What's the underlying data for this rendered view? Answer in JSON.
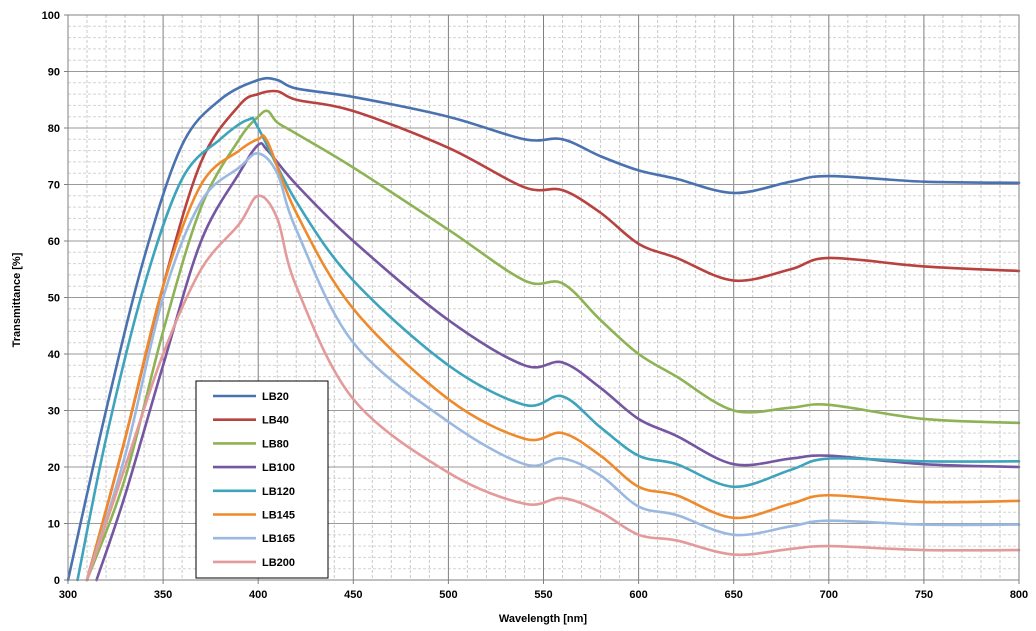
{
  "chart_data": {
    "type": "line",
    "title": "",
    "xlabel": "Wavelength [nm]",
    "ylabel": "Transmittance [%]",
    "xlim": [
      300,
      800
    ],
    "ylim": [
      0,
      100
    ],
    "x_ticks": [
      300,
      350,
      400,
      450,
      500,
      550,
      600,
      650,
      700,
      750,
      800
    ],
    "y_ticks": [
      0,
      10,
      20,
      30,
      40,
      50,
      60,
      70,
      80,
      90,
      100
    ],
    "x_tick_labels": [
      "300",
      "350",
      "400",
      "450",
      "500",
      "550",
      "600",
      "650",
      "700",
      "750",
      "800"
    ],
    "y_tick_labels": [
      "0",
      "10",
      "20",
      "30",
      "40",
      "50",
      "60",
      "70",
      "80",
      "90",
      "100"
    ],
    "grid": true,
    "legend_position": "bottom-left",
    "series": [
      {
        "name": "LB20",
        "color": "#4a72b0",
        "x": [
          300,
          320,
          340,
          360,
          380,
          400,
          410,
          420,
          450,
          500,
          540,
          560,
          580,
          600,
          620,
          650,
          680,
          700,
          750,
          800
        ],
        "y": [
          0,
          30,
          57,
          77,
          85,
          88.5,
          88.5,
          87,
          85.5,
          82,
          78,
          78,
          75,
          72.5,
          71,
          68.5,
          70.5,
          71.5,
          70.5,
          70.3
        ]
      },
      {
        "name": "LB40",
        "color": "#b74240",
        "x": [
          310,
          330,
          350,
          370,
          390,
          400,
          410,
          420,
          450,
          500,
          540,
          560,
          580,
          600,
          620,
          650,
          680,
          700,
          750,
          800
        ],
        "y": [
          0,
          25,
          52,
          74,
          84,
          86,
          86.5,
          85,
          83,
          76.5,
          69.5,
          69,
          65,
          59.5,
          57,
          53,
          55,
          57,
          55.5,
          54.7
        ]
      },
      {
        "name": "LB80",
        "color": "#8db354",
        "x": [
          310,
          330,
          350,
          370,
          390,
          400,
          405,
          410,
          420,
          450,
          500,
          540,
          560,
          580,
          600,
          620,
          650,
          680,
          700,
          750,
          800
        ],
        "y": [
          0,
          18,
          44,
          66,
          78,
          82,
          83,
          81,
          79,
          73,
          62,
          53,
          52.5,
          46,
          40,
          36,
          30,
          30.5,
          31,
          28.5,
          27.8
        ]
      },
      {
        "name": "LB100",
        "color": "#7556a0",
        "x": [
          315,
          330,
          350,
          370,
          390,
          400,
          405,
          420,
          450,
          500,
          540,
          560,
          580,
          600,
          620,
          650,
          680,
          700,
          750,
          800
        ],
        "y": [
          0,
          15,
          38,
          60,
          72,
          77,
          76,
          70,
          60,
          46,
          38,
          38.5,
          34,
          28.5,
          25.5,
          20.5,
          21.5,
          22,
          20.5,
          20
        ]
      },
      {
        "name": "LB120",
        "color": "#3ea4bc",
        "x": [
          305,
          320,
          340,
          360,
          380,
          395,
          400,
          420,
          450,
          500,
          540,
          560,
          580,
          600,
          620,
          650,
          680,
          700,
          750,
          800
        ],
        "y": [
          0,
          25,
          52,
          71,
          78,
          81.5,
          80,
          67,
          53,
          38,
          31,
          32.5,
          27,
          22,
          20.5,
          16.5,
          19.5,
          21.5,
          21,
          21
        ]
      },
      {
        "name": "LB145",
        "color": "#ef8a2c",
        "x": [
          310,
          330,
          350,
          370,
          390,
          400,
          405,
          420,
          450,
          500,
          540,
          560,
          580,
          600,
          620,
          650,
          680,
          700,
          750,
          800
        ],
        "y": [
          0,
          25,
          52,
          70,
          76,
          78,
          77.5,
          65,
          48,
          32,
          25,
          26,
          22,
          16.5,
          15,
          11,
          13.5,
          15,
          13.8,
          14
        ]
      },
      {
        "name": "LB165",
        "color": "#9bb9e0",
        "x": [
          310,
          330,
          350,
          370,
          390,
          400,
          410,
          420,
          450,
          500,
          540,
          560,
          580,
          600,
          620,
          650,
          680,
          700,
          750,
          800
        ],
        "y": [
          0,
          22,
          50,
          67,
          73,
          75.5,
          72,
          62,
          42,
          28,
          20.5,
          21.5,
          18.5,
          13,
          11.5,
          8,
          9.5,
          10.5,
          9.8,
          9.8
        ]
      },
      {
        "name": "LB200",
        "color": "#e49a9a",
        "x": [
          310,
          330,
          350,
          370,
          390,
          400,
          410,
          420,
          450,
          500,
          540,
          560,
          580,
          600,
          620,
          650,
          680,
          700,
          750,
          800
        ],
        "y": [
          0,
          20,
          40,
          55,
          63,
          68,
          64,
          52,
          32,
          19,
          13.5,
          14.5,
          12,
          8,
          7,
          4.5,
          5.5,
          6,
          5.3,
          5.3
        ]
      }
    ]
  }
}
